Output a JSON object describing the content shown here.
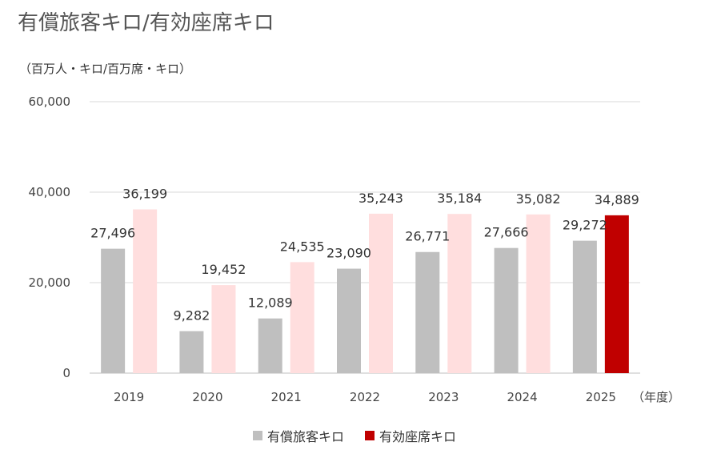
{
  "title": "有償旅客キロ/有効座席キロ",
  "unit_label": "（百万人・キロ/百万席・キロ）",
  "x_unit_label": "（年度）",
  "colors": {
    "rpk": "#bfbfbf",
    "ask_past": "#ffdede",
    "ask_current": "#c00000",
    "grid": "#d9d9d9"
  },
  "legend": [
    {
      "label": "有償旅客キロ",
      "color": "#bfbfbf"
    },
    {
      "label": "有効座席キロ",
      "color": "#c00000"
    }
  ],
  "chart_data": {
    "type": "bar",
    "title": "有償旅客キロ/有効座席キロ",
    "ylabel": "（百万人・キロ/百万席・キロ）",
    "xlabel": "（年度）",
    "categories": [
      "2019",
      "2020",
      "2021",
      "2022",
      "2023",
      "2024",
      "2025"
    ],
    "series": [
      {
        "name": "有償旅客キロ",
        "values": [
          27496,
          9282,
          12089,
          23090,
          26771,
          27666,
          29272
        ]
      },
      {
        "name": "有効座席キロ",
        "values": [
          36199,
          19452,
          24535,
          35243,
          35184,
          35082,
          34889
        ]
      }
    ],
    "ylim": [
      0,
      60000
    ],
    "yticks": [
      0,
      20000,
      40000,
      60000
    ],
    "ytick_labels": [
      "0",
      "20,000",
      "40,000",
      "60,000"
    ],
    "data_labels": [
      [
        "27,496",
        "9,282",
        "12,089",
        "23,090",
        "26,771",
        "27,666",
        "29,272"
      ],
      [
        "36,199",
        "19,452",
        "24,535",
        "35,243",
        "35,184",
        "35,082",
        "34,889"
      ]
    ],
    "grid": true,
    "legend_position": "bottom"
  }
}
